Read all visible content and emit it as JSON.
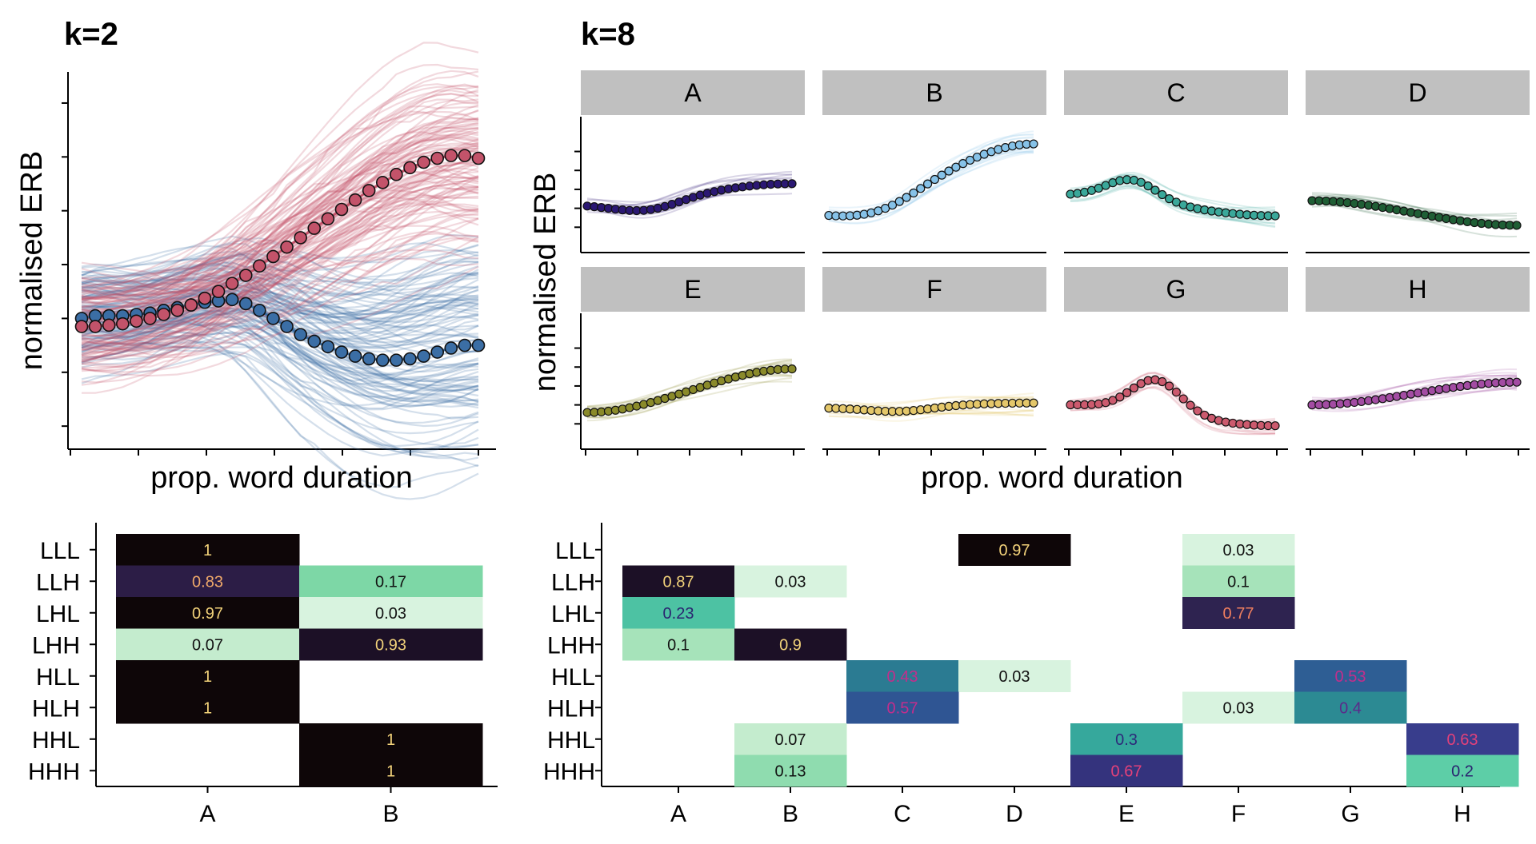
{
  "chart_data": [
    {
      "id": "k2_curves",
      "type": "line",
      "title": "k=2",
      "xlabel": "prop. word duration",
      "ylabel": "normalised ERB",
      "tick_labels_shown": false,
      "n_points": 30,
      "series": [
        {
          "name": "A",
          "color": "#3b6ea5",
          "values": [
            2.0,
            2.1,
            2.1,
            2.1,
            2.15,
            2.2,
            2.3,
            2.4,
            2.5,
            2.6,
            2.65,
            2.7,
            2.55,
            2.3,
            2.0,
            1.7,
            1.4,
            1.15,
            0.95,
            0.75,
            0.6,
            0.5,
            0.45,
            0.45,
            0.5,
            0.6,
            0.75,
            0.9,
            1.0,
            1.0
          ]
        },
        {
          "name": "B",
          "color": "#c3536a",
          "values": [
            1.7,
            1.7,
            1.75,
            1.8,
            1.9,
            2.0,
            2.15,
            2.3,
            2.5,
            2.75,
            3.0,
            3.3,
            3.6,
            3.95,
            4.3,
            4.65,
            5.0,
            5.35,
            5.7,
            6.05,
            6.4,
            6.75,
            7.05,
            7.35,
            7.6,
            7.8,
            7.95,
            8.05,
            8.05,
            7.95
          ]
        }
      ]
    },
    {
      "id": "k8_curves",
      "type": "line",
      "title": "k=8",
      "xlabel": "prop. word duration",
      "ylabel": "normalised ERB",
      "tick_labels_shown": false,
      "n_points": 30,
      "facets": [
        {
          "label": "A",
          "color": "#2b1873",
          "start": 2.2,
          "end": 3.3,
          "min_val": 1.8,
          "min_at": 0.3
        },
        {
          "label": "B",
          "color": "#86c2e8",
          "start": 1.7,
          "end": 5.4,
          "min_val": 1.4,
          "min_at": 0.28
        },
        {
          "label": "C",
          "color": "#3aa89a",
          "start": 2.7,
          "end": 1.6,
          "peak_val": 3.3,
          "peak_at": 0.3
        },
        {
          "label": "D",
          "color": "#1f5e35",
          "start": 2.4,
          "end": 1.1
        },
        {
          "label": "E",
          "color": "#8a8a2a",
          "start": 1.6,
          "end": 3.9
        },
        {
          "label": "F",
          "color": "#e4c76a",
          "start": 1.85,
          "end": 2.1,
          "min_val": 1.65,
          "min_at": 0.35
        },
        {
          "label": "G",
          "color": "#cc5a6e",
          "start": 2.0,
          "end": 0.9,
          "peak_val": 3.3,
          "peak_at": 0.42
        },
        {
          "label": "H",
          "color": "#a34ca3",
          "start": 2.0,
          "end": 3.2
        }
      ]
    },
    {
      "id": "k2_heatmap",
      "type": "heatmap",
      "rows": [
        "LLL",
        "LLH",
        "LHL",
        "LHH",
        "HLL",
        "HLH",
        "HHL",
        "HHH"
      ],
      "cols": [
        "A",
        "B"
      ],
      "values": [
        [
          1,
          null
        ],
        [
          0.83,
          0.17
        ],
        [
          0.97,
          0.03
        ],
        [
          0.07,
          0.93
        ],
        [
          1,
          null
        ],
        [
          1,
          null
        ],
        [
          null,
          1
        ],
        [
          null,
          1
        ]
      ],
      "labels": [
        [
          "1",
          ""
        ],
        [
          "0.83",
          "0.17"
        ],
        [
          "0.97",
          "0.03"
        ],
        [
          "0.07",
          "0.93"
        ],
        [
          "1",
          ""
        ],
        [
          "1",
          ""
        ],
        [
          "",
          "1"
        ],
        [
          "",
          "1"
        ]
      ]
    },
    {
      "id": "k8_heatmap",
      "type": "heatmap",
      "rows": [
        "LLL",
        "LLH",
        "LHL",
        "LHH",
        "HLL",
        "HLH",
        "HHL",
        "HHH"
      ],
      "cols": [
        "A",
        "B",
        "C",
        "D",
        "E",
        "F",
        "G",
        "H"
      ],
      "values": [
        [
          null,
          null,
          null,
          0.97,
          null,
          0.03,
          null,
          null
        ],
        [
          0.87,
          0.03,
          null,
          null,
          null,
          0.1,
          null,
          null
        ],
        [
          0.23,
          null,
          null,
          null,
          null,
          0.77,
          null,
          null
        ],
        [
          0.1,
          0.9,
          null,
          null,
          null,
          null,
          null,
          null
        ],
        [
          null,
          null,
          0.43,
          0.03,
          null,
          null,
          0.53,
          null
        ],
        [
          null,
          null,
          0.57,
          null,
          null,
          0.03,
          0.4,
          null
        ],
        [
          null,
          0.07,
          null,
          null,
          0.3,
          null,
          null,
          0.63
        ],
        [
          null,
          0.13,
          null,
          null,
          0.67,
          null,
          null,
          0.2
        ]
      ],
      "labels": [
        [
          "",
          "",
          "",
          "0.97",
          "",
          "0.03",
          "",
          ""
        ],
        [
          "0.87",
          "0.03",
          "",
          "",
          "",
          "0.1",
          "",
          ""
        ],
        [
          "0.23",
          "",
          "",
          "",
          "",
          "0.77",
          "",
          ""
        ],
        [
          "0.1",
          "0.9",
          "",
          "",
          "",
          "",
          "",
          ""
        ],
        [
          "",
          "",
          "0.43",
          "0.03",
          "",
          "",
          "0.53",
          ""
        ],
        [
          "",
          "",
          "0.57",
          "",
          "",
          "0.03",
          "0.4",
          ""
        ],
        [
          "",
          "0.07",
          "",
          "",
          "0.3",
          "",
          "",
          "0.63"
        ],
        [
          "",
          "0.13",
          "",
          "",
          "0.67",
          "",
          "",
          "0.2"
        ]
      ]
    }
  ]
}
